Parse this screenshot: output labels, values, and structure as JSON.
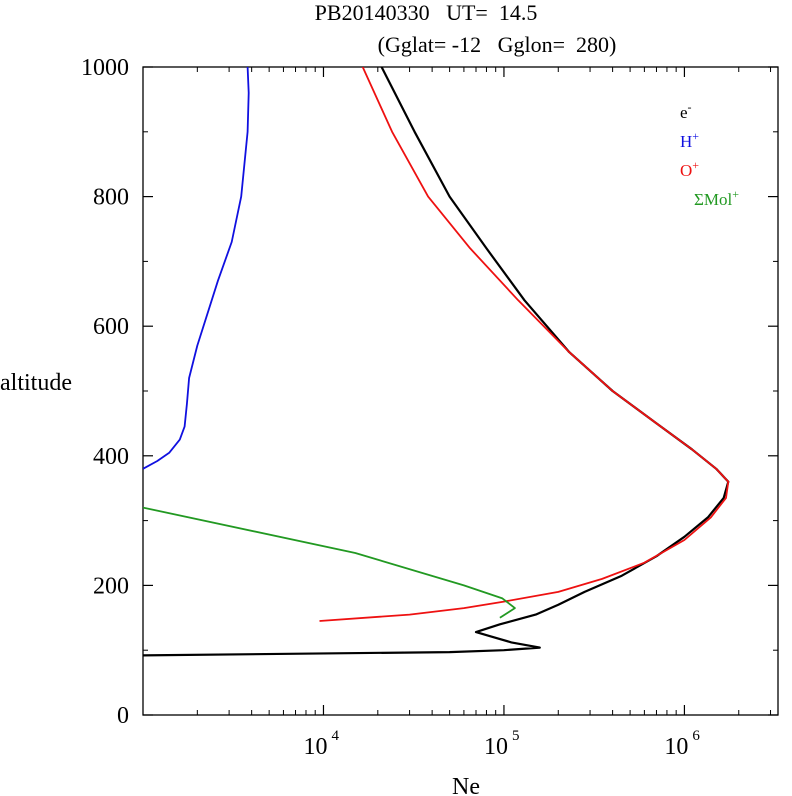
{
  "chart_data": {
    "type": "line",
    "title": {
      "line1": "PB20140330   UT=  14.5",
      "line2": "(Gglat= -12   Gglon=  280)"
    },
    "xlabel": "Ne",
    "ylabel": "altitude",
    "x_scale": "log",
    "xlim": [
      1000,
      3300000
    ],
    "ylim": [
      0,
      1000
    ],
    "x_ticks": [
      {
        "base": "10",
        "exp": "4",
        "value": 10000
      },
      {
        "base": "10",
        "exp": "5",
        "value": 100000
      },
      {
        "base": "10",
        "exp": "6",
        "value": 1000000
      }
    ],
    "y_ticks": [
      "0",
      "200",
      "400",
      "600",
      "800",
      "1000"
    ],
    "y_tick_values": [
      0,
      200,
      400,
      600,
      800,
      1000
    ],
    "legend": [
      {
        "base": "e",
        "sup": "-",
        "color": "#000000"
      },
      {
        "base": "H",
        "sup": "+",
        "color": "#1010e0"
      },
      {
        "base": "O",
        "sup": "+",
        "color": "#ee1111"
      },
      {
        "base": "ΣMol",
        "sup": "+",
        "color": "#229922"
      }
    ],
    "series": [
      {
        "name": "e-",
        "color": "#000000",
        "points": [
          [
            1000,
            92
          ],
          [
            50000,
            97
          ],
          [
            100000,
            100
          ],
          [
            158000,
            104
          ],
          [
            110000,
            112
          ],
          [
            70000,
            128
          ],
          [
            95000,
            140
          ],
          [
            150000,
            155
          ],
          [
            200000,
            170
          ],
          [
            280000,
            190
          ],
          [
            450000,
            215
          ],
          [
            700000,
            245
          ],
          [
            1000000,
            275
          ],
          [
            1350000,
            305
          ],
          [
            1650000,
            335
          ],
          [
            1750000,
            360
          ],
          [
            1500000,
            380
          ],
          [
            1100000,
            410
          ],
          [
            700000,
            450
          ],
          [
            400000,
            500
          ],
          [
            230000,
            560
          ],
          [
            130000,
            640
          ],
          [
            80000,
            720
          ],
          [
            50000,
            800
          ],
          [
            32000,
            900
          ],
          [
            21000,
            1000
          ]
        ]
      },
      {
        "name": "O+",
        "color": "#ee1111",
        "points": [
          [
            9500,
            145
          ],
          [
            30000,
            155
          ],
          [
            60000,
            165
          ],
          [
            100000,
            175
          ],
          [
            200000,
            190
          ],
          [
            350000,
            210
          ],
          [
            600000,
            235
          ],
          [
            1000000,
            270
          ],
          [
            1400000,
            305
          ],
          [
            1700000,
            335
          ],
          [
            1750000,
            360
          ],
          [
            1500000,
            380
          ],
          [
            1100000,
            410
          ],
          [
            700000,
            450
          ],
          [
            400000,
            500
          ],
          [
            230000,
            560
          ],
          [
            120000,
            640
          ],
          [
            65000,
            720
          ],
          [
            38000,
            800
          ],
          [
            24000,
            900
          ],
          [
            16500,
            1000
          ]
        ]
      },
      {
        "name": "H+",
        "color": "#1010e0",
        "points": [
          [
            1000,
            380
          ],
          [
            1200,
            392
          ],
          [
            1400,
            405
          ],
          [
            1600,
            425
          ],
          [
            1700,
            445
          ],
          [
            1750,
            480
          ],
          [
            1800,
            520
          ],
          [
            2000,
            570
          ],
          [
            2600,
            670
          ],
          [
            3100,
            730
          ],
          [
            3500,
            800
          ],
          [
            3800,
            900
          ],
          [
            3850,
            960
          ],
          [
            3800,
            1000
          ]
        ]
      },
      {
        "name": "ΣMol+",
        "color": "#229922",
        "points": [
          [
            1000,
            320
          ],
          [
            15000,
            250
          ],
          [
            60000,
            200
          ],
          [
            98000,
            180
          ],
          [
            115000,
            165
          ],
          [
            95000,
            150
          ]
        ]
      }
    ]
  }
}
